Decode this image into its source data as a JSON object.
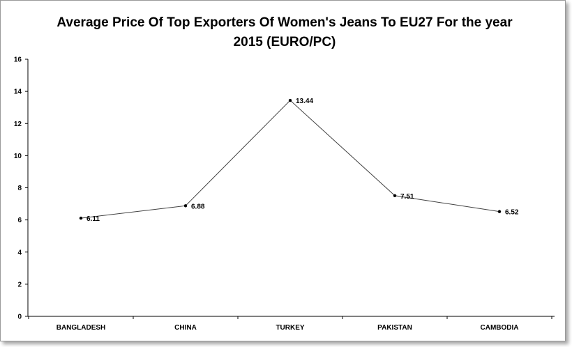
{
  "chart_data": {
    "type": "line",
    "title_lines": [
      "Average Price Of Top Exporters Of Women's Jeans To EU27 For the year",
      "2015 (EURO/PC)"
    ],
    "categories": [
      "BANGLADESH",
      "CHINA",
      "TURKEY",
      "PAKISTAN",
      "CAMBODIA"
    ],
    "series": [
      {
        "values": [
          6.11,
          6.88,
          13.44,
          7.51,
          6.52
        ],
        "data_labels": [
          "6.11",
          "6.88",
          "13.44",
          "7.51",
          "6.52"
        ]
      }
    ],
    "ylim": [
      0,
      16
    ],
    "yticks": [
      0,
      2,
      4,
      6,
      8,
      10,
      12,
      14,
      16
    ],
    "ytick_labels": [
      "0",
      "2",
      "4",
      "6",
      "8",
      "10",
      "12",
      "14",
      "16"
    ],
    "grid": false,
    "legend": "none",
    "colors": {
      "line": "#404040",
      "marker": "#000000",
      "axis": "#000000"
    }
  }
}
